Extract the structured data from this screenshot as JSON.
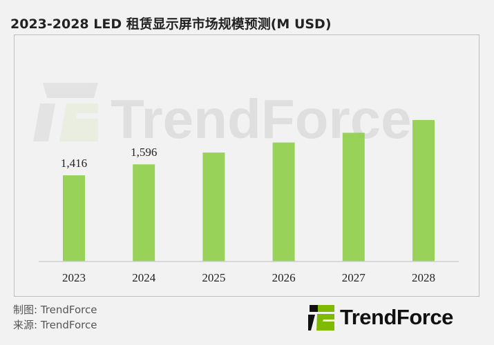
{
  "chart_data": {
    "type": "bar",
    "title": "2023-2028 LED 租赁显示屏市场规模预测(M USD)",
    "categories": [
      "2023",
      "2024",
      "2025",
      "2026",
      "2027",
      "2028"
    ],
    "values": [
      1416,
      1596,
      1790,
      1955,
      2115,
      2325
    ],
    "data_labels": [
      "1,416",
      "1,596",
      "",
      "",
      "",
      ""
    ],
    "xlabel": "",
    "ylabel": "",
    "ylim": [
      0,
      2800
    ],
    "grid": false,
    "bar_color": "#92d050"
  },
  "watermark": "TrendForce",
  "footer": {
    "made_by": "制图: TrendForce",
    "source": "来源: TrendForce"
  },
  "logo": {
    "text": "TrendForce",
    "accent": "#7fba00"
  }
}
